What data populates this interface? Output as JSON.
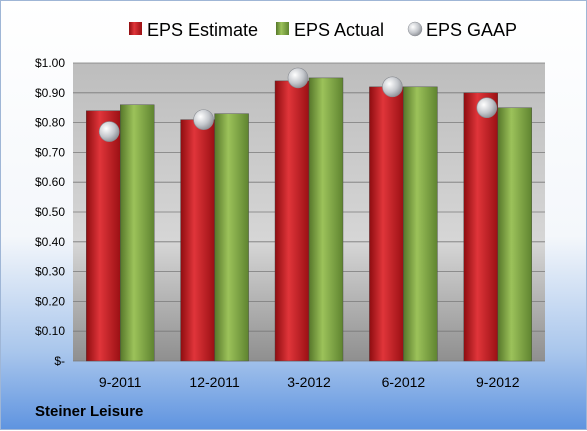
{
  "chart_data": {
    "type": "bar",
    "categories": [
      "9-2011",
      "12-2011",
      "3-2012",
      "6-2012",
      "9-2012"
    ],
    "series": [
      {
        "name": "EPS Estimate",
        "kind": "bar",
        "color": "#c0171c",
        "values": [
          0.84,
          0.81,
          0.94,
          0.92,
          0.9
        ]
      },
      {
        "name": "EPS Actual",
        "kind": "bar",
        "color": "#7aa33d",
        "values": [
          0.86,
          0.83,
          0.95,
          0.92,
          0.85
        ]
      },
      {
        "name": "EPS GAAP",
        "kind": "marker",
        "color": "#b9bcc2",
        "values": [
          0.77,
          0.81,
          0.95,
          0.92,
          0.85
        ]
      }
    ],
    "y_ticks": [
      "$-",
      "$0.10",
      "$0.20",
      "$0.30",
      "$0.40",
      "$0.50",
      "$0.60",
      "$0.70",
      "$0.80",
      "$0.90",
      "$1.00"
    ],
    "ylim": [
      0,
      1.0
    ],
    "grid": true,
    "legend_position": "top"
  },
  "footer": {
    "company": "Steiner Leisure"
  }
}
